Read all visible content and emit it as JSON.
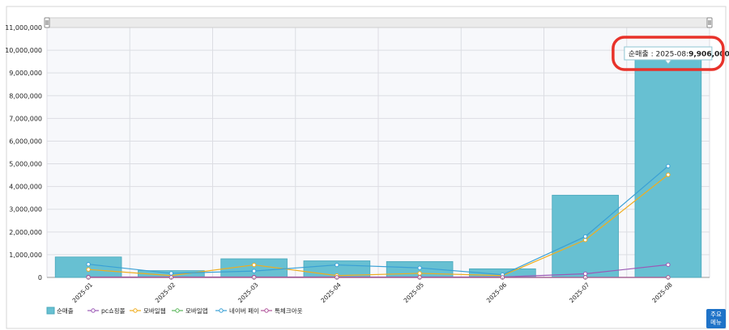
{
  "chart_data": {
    "type": "bar",
    "categories": [
      "2025-01",
      "2025-02",
      "2025-03",
      "2025-04",
      "2025-05",
      "2025-06",
      "2025-07",
      "2025-08"
    ],
    "ylim": [
      0,
      11000000
    ],
    "y_ticks": [
      "0",
      "1,000,000",
      "2,000,000",
      "3,000,000",
      "4,000,000",
      "5,000,000",
      "6,000,000",
      "7,000,000",
      "8,000,000",
      "9,000,000",
      "10,000,000",
      "11,000,000"
    ],
    "grid": true,
    "legend_position": "bottom-left",
    "series": [
      {
        "name": "순매출",
        "type": "bar",
        "color": "#67c0d2",
        "values": [
          900000,
          300000,
          820000,
          730000,
          700000,
          380000,
          3620000,
          9906000
        ]
      },
      {
        "name": "pc쇼핑몰",
        "type": "line",
        "color": "#9b59b6",
        "values": [
          20000,
          20000,
          20000,
          20000,
          20000,
          20000,
          160000,
          560000
        ]
      },
      {
        "name": "모바일웹",
        "type": "line",
        "color": "#f0ad1e",
        "values": [
          350000,
          80000,
          550000,
          80000,
          180000,
          80000,
          1650000,
          4520000
        ]
      },
      {
        "name": "모바일앱",
        "type": "line",
        "color": "#5cb85c",
        "values": [
          0,
          0,
          0,
          0,
          0,
          0,
          0,
          0
        ]
      },
      {
        "name": "네이버 페이",
        "type": "line",
        "color": "#3aa0d5",
        "values": [
          580000,
          180000,
          280000,
          550000,
          420000,
          120000,
          1800000,
          4900000
        ]
      },
      {
        "name": "톡체크아웃",
        "type": "line",
        "color": "#b0559b",
        "values": [
          0,
          0,
          0,
          0,
          0,
          0,
          0,
          0
        ]
      }
    ],
    "tooltip": {
      "label": "순매출 : 2025-08:",
      "value": "9,906,000"
    }
  },
  "menu_button": {
    "line1": "주요",
    "line2": "메뉴"
  }
}
